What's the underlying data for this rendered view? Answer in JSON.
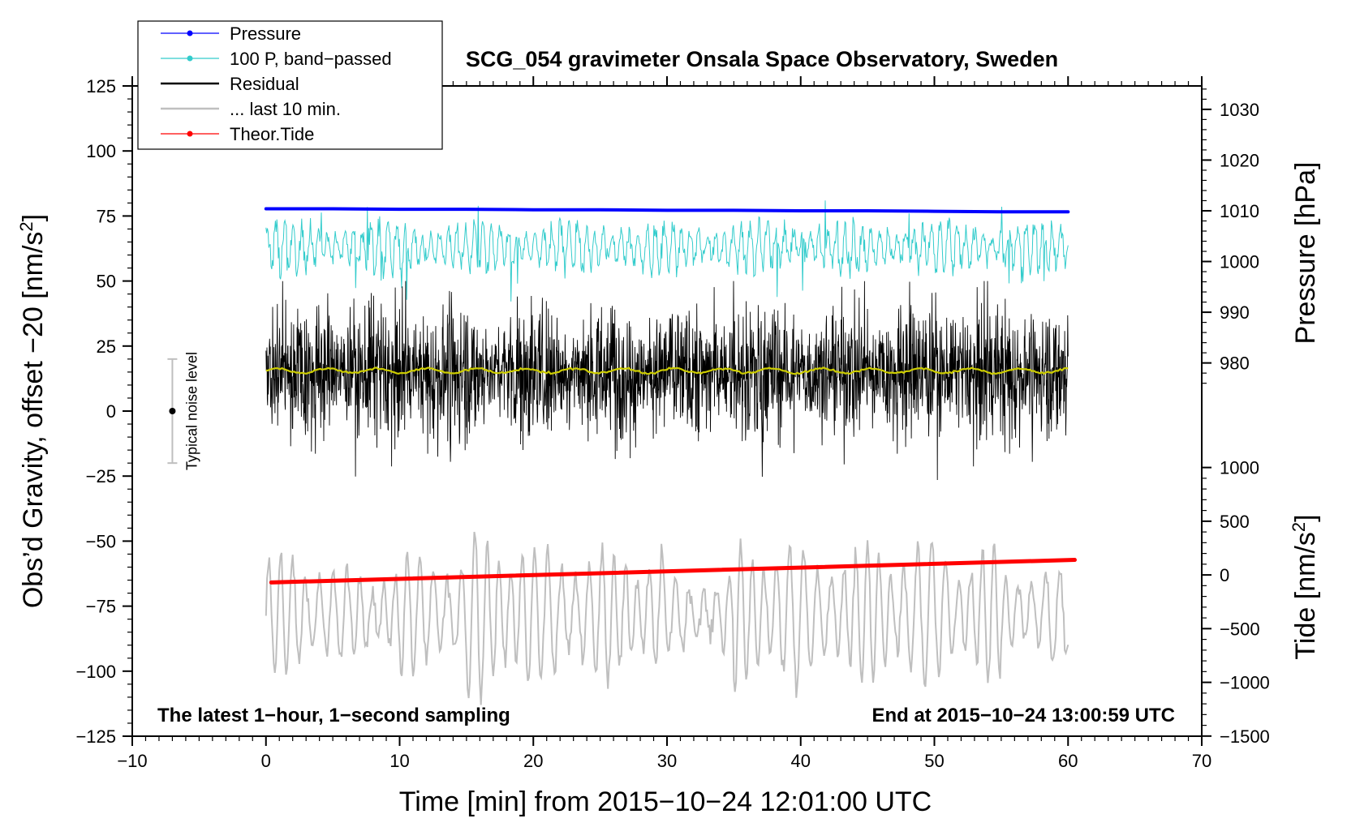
{
  "chart_data": {
    "type": "line",
    "title": "SCG_054 gravimeter Onsala Space Observatory, Sweden",
    "xlabel": "Time [min] from 2015−10−24 12:01:00 UTC",
    "ylabel_main": "Obs’d Gravity, offset −20",
    "ylabel_unit": "nm/s",
    "ylabel_sup": "2",
    "ylabel_right_top": "Pressure [hPa]",
    "ylabel_right_bottom_main": "Tide [nm/s",
    "ylabel_right_bottom_sup": "2",
    "ylabel_right_bottom_end": "]",
    "xlim": [
      -10,
      70
    ],
    "ylim_left": [
      -125,
      125
    ],
    "xticks": [
      -10,
      0,
      10,
      20,
      30,
      40,
      50,
      60,
      70
    ],
    "xtick_labels": [
      "−10",
      "0",
      "10",
      "20",
      "30",
      "40",
      "50",
      "60",
      "70"
    ],
    "yticks_left": [
      125,
      100,
      75,
      50,
      25,
      0,
      -25,
      -50,
      -75,
      -100,
      -125
    ],
    "ytick_labels_left": [
      "125",
      "100",
      "75",
      "50",
      "25",
      "0",
      "−25",
      "−50",
      "−75",
      "−100",
      "−125"
    ],
    "pressure_axis": {
      "ticks": [
        980,
        990,
        1000,
        1010,
        1020,
        1030
      ],
      "tick_labels": [
        "980",
        "990",
        "1000",
        "1010",
        "1020",
        "1030"
      ],
      "left_units_at_980": 18.5,
      "left_units_per_hpa": 1.95
    },
    "tide_axis": {
      "ticks": [
        1000,
        500,
        0,
        -500,
        -1000,
        -1500
      ],
      "tick_labels": [
        "1000",
        "500",
        "0",
        "−500",
        "−1000",
        "−1500"
      ],
      "left_units_at_0": -63.0,
      "left_units_per_unit": 0.0413
    },
    "legend": {
      "position": "top-left",
      "entries": [
        {
          "label": "Pressure",
          "color": "#0000ff",
          "marker": true
        },
        {
          "label": "100 P, band−passed",
          "color": "#33cccc",
          "marker": true
        },
        {
          "label": "Residual",
          "color": "#000000",
          "marker": false
        },
        {
          "label": "... last 10 min.",
          "color": "#bfbfbf",
          "marker": false
        },
        {
          "label": "Theor.Tide",
          "color": "#ff0000",
          "marker": true
        }
      ]
    },
    "series": [
      {
        "name": "Pressure",
        "axis": "pressure",
        "color": "#0000ff",
        "x_range": [
          0,
          60
        ],
        "values": [
          1010.4,
          1010.4,
          1010.3,
          1010.3,
          1010.2,
          1010.2,
          1010.1,
          1010.1,
          1010.0,
          1010.0,
          1009.9,
          1009.8,
          1009.8
        ]
      },
      {
        "name": "100 P, band−passed",
        "axis": "left",
        "color": "#33cccc",
        "x_range": [
          0,
          60
        ],
        "center": 63,
        "amplitude": 9,
        "spikes_max": 81,
        "spikes_min": 38
      },
      {
        "name": "Residual",
        "axis": "left",
        "color": "#000000",
        "x_range": [
          0,
          60
        ],
        "center": 15,
        "amplitude": 20,
        "spikes_max": 50,
        "spikes_min": -29
      },
      {
        "name": "Residual running mean",
        "axis": "left",
        "color": "#cccc00",
        "x_range": [
          0,
          60
        ],
        "center": 15.5
      },
      {
        "name": "... last 10 min.",
        "axis": "left",
        "color": "#bfbfbf",
        "x_range": [
          0,
          60
        ],
        "center": -78,
        "amplitude": 17,
        "max": -45,
        "min": -113
      },
      {
        "name": "Theor.Tide",
        "axis": "tide",
        "color": "#ff0000",
        "x": [
          0.4,
          60.5
        ],
        "values": [
          -70,
          140
        ]
      }
    ],
    "noise_bar": {
      "x": -7,
      "y": 0,
      "low": -20,
      "high": 20,
      "label": "Typical noise level"
    },
    "annotations": {
      "bottom_left": "The latest 1−hour, 1−second sampling",
      "bottom_right": "End at 2015−10−24 13:00:59 UTC"
    }
  }
}
